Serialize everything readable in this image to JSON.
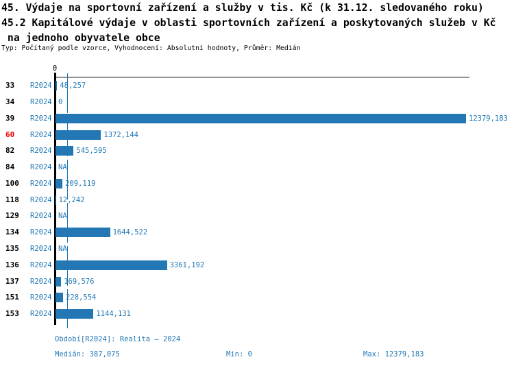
{
  "title": {
    "line1": "45. Výdaje na sportovní zařízení a služby v tis. Kč (k 31.12. sledovaného roku)",
    "line2": "45.2 Kapitálové výdaje v oblasti sportovních zařízení a poskytovaných služeb v Kč",
    "line3": " na jednoho obyvatele obce",
    "meta": "Typ: Počítaný podle vzorce, Vyhodnocení: Absolutní hodnoty, Průměr: Medián"
  },
  "chart_data": {
    "type": "bar",
    "orientation": "horizontal",
    "axis_zero_label": "0",
    "series_label": "R2024",
    "categories": [
      "33",
      "34",
      "39",
      "60",
      "82",
      "84",
      "100",
      "118",
      "129",
      "134",
      "135",
      "136",
      "137",
      "151",
      "153"
    ],
    "values": [
      48.257,
      0,
      12379.183,
      1372.144,
      545.595,
      null,
      209.119,
      12.242,
      null,
      1644.522,
      null,
      3361.192,
      169.576,
      228.554,
      1144.131
    ],
    "value_labels": [
      "48,257",
      "0",
      "12379,183",
      "1372,144",
      "545,595",
      "NA",
      "209,119",
      "12,242",
      "NA",
      "1644,522",
      "NA",
      "3361,192",
      "169,576",
      "228,554",
      "1144,131"
    ],
    "highlighted_category": "60",
    "xlim": [
      0,
      12379.183
    ],
    "median": 387.075,
    "min": 0,
    "max": 12379.183,
    "grid": false,
    "legend_position": "none",
    "colors": {
      "bar": "#2277b4",
      "text_blue": "#1f77b4",
      "highlight": "#ee0000",
      "axis": "#000000"
    }
  },
  "footer": {
    "period": "Období[R2024]: Realita – 2024",
    "median": "Medián: 387,075",
    "min": "Min: 0",
    "max": "Max: 12379,183"
  }
}
